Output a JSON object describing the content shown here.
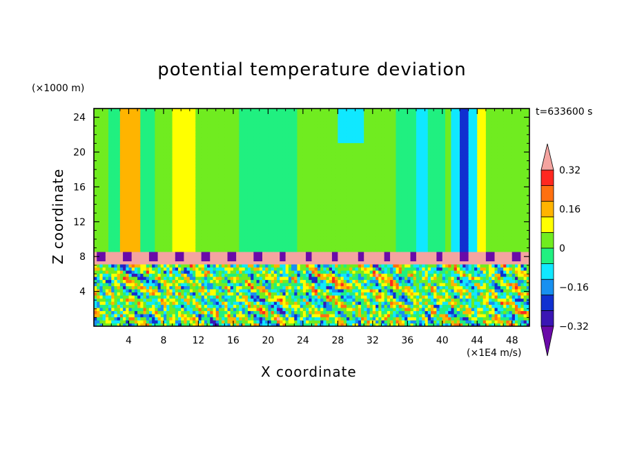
{
  "chart_data": {
    "type": "heatmap",
    "title": "potential temperature deviation",
    "xlabel": "X coordinate",
    "ylabel": "Z coordinate",
    "x_unit": "(×1E4 m/s)",
    "y_unit": "(×1000 m)",
    "time_label": "t=633600 s",
    "xlim": [
      0,
      50
    ],
    "ylim": [
      0,
      25
    ],
    "x_ticks": [
      4,
      8,
      12,
      16,
      20,
      24,
      28,
      32,
      36,
      40,
      44,
      48
    ],
    "y_ticks": [
      4,
      8,
      12,
      16,
      20,
      24
    ],
    "colorbar": {
      "ticks": [
        "0.32",
        "0.16",
        "0",
        "−0.16",
        "−0.32"
      ],
      "tick_values": [
        0.32,
        0.16,
        0,
        -0.16,
        -0.32
      ],
      "levels": [
        -0.4,
        -0.32,
        -0.24,
        -0.16,
        -0.08,
        0,
        0.08,
        0.16,
        0.24,
        0.32,
        0.4
      ],
      "colors_low_to_high": [
        "#6a0aa8",
        "#3a16b4",
        "#1030d0",
        "#1890f0",
        "#10e8ff",
        "#20f080",
        "#70ec20",
        "#ffff00",
        "#ffb400",
        "#ff7010",
        "#ff2820",
        "#f4a4a0"
      ],
      "extend": "both"
    }
  }
}
